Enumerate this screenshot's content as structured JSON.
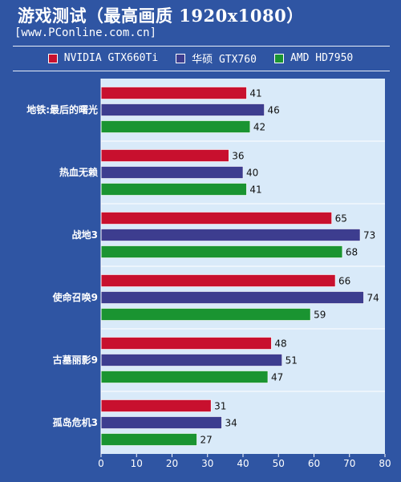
{
  "title": "游戏测试（最高画质 1920x1080）",
  "source": "[www.PConline.com.cn]",
  "chart_data": {
    "type": "bar",
    "orientation": "horizontal",
    "title": "游戏测试（最高画质 1920x1080）",
    "categories": [
      "地铁:最后的曙光",
      "热血无赖",
      "战地3",
      "使命召唤9",
      "古墓丽影9",
      "孤岛危机3"
    ],
    "series": [
      {
        "name": "NVIDIA GTX660Ti",
        "color": "#c8102e",
        "values": [
          41,
          36,
          65,
          66,
          48,
          31
        ]
      },
      {
        "name": "华硕 GTX760",
        "color": "#3d3d8f",
        "values": [
          46,
          40,
          73,
          74,
          51,
          34
        ]
      },
      {
        "name": "AMD HD7950",
        "color": "#1a9431",
        "values": [
          42,
          41,
          68,
          59,
          47,
          27
        ]
      }
    ],
    "xlim": [
      0,
      80
    ],
    "xticks": [
      0,
      10,
      20,
      30,
      40,
      50,
      60,
      70,
      80
    ],
    "grid": false,
    "legend_position": "top",
    "plot_background": "#d9eaf9"
  }
}
